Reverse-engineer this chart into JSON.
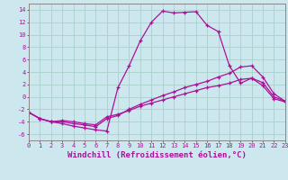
{
  "xlabel": "Windchill (Refroidissement éolien,°C)",
  "xlim": [
    0,
    23
  ],
  "ylim": [
    -7,
    15
  ],
  "yticks": [
    -6,
    -4,
    -2,
    0,
    2,
    4,
    6,
    8,
    10,
    12,
    14
  ],
  "xticks": [
    0,
    1,
    2,
    3,
    4,
    5,
    6,
    7,
    8,
    9,
    10,
    11,
    12,
    13,
    14,
    15,
    16,
    17,
    18,
    19,
    20,
    21,
    22,
    23
  ],
  "background_color": "#cce8ee",
  "grid_color": "#aacfcc",
  "line_color": "#aa1199",
  "line1_x": [
    0,
    1,
    2,
    3,
    4,
    5,
    6,
    7,
    8,
    9,
    10,
    11,
    12,
    13,
    14,
    15,
    16,
    17,
    18,
    19,
    20,
    21,
    22,
    23
  ],
  "line1_y": [
    -2.5,
    -3.5,
    -4.0,
    -4.3,
    -4.7,
    -5.0,
    -5.3,
    -5.5,
    1.5,
    5.0,
    9.0,
    12.0,
    13.8,
    13.5,
    13.6,
    13.7,
    11.5,
    10.5,
    5.0,
    2.2,
    3.0,
    1.8,
    -0.3,
    -0.8
  ],
  "line2_x": [
    0,
    1,
    2,
    3,
    4,
    5,
    6,
    7,
    8,
    9,
    10,
    11,
    12,
    13,
    14,
    15,
    16,
    17,
    18,
    19,
    20,
    21,
    22,
    23
  ],
  "line2_y": [
    -2.5,
    -3.5,
    -4.0,
    -4.0,
    -4.3,
    -4.5,
    -4.8,
    -3.5,
    -3.0,
    -2.0,
    -1.2,
    -0.5,
    0.2,
    0.8,
    1.5,
    2.0,
    2.5,
    3.2,
    3.8,
    4.8,
    5.0,
    3.2,
    0.5,
    -0.7
  ],
  "line3_x": [
    0,
    1,
    2,
    3,
    4,
    5,
    6,
    7,
    8,
    9,
    10,
    11,
    12,
    13,
    14,
    15,
    16,
    17,
    18,
    19,
    20,
    21,
    22,
    23
  ],
  "line3_y": [
    -2.5,
    -3.5,
    -4.0,
    -3.8,
    -4.0,
    -4.3,
    -4.5,
    -3.2,
    -2.8,
    -2.2,
    -1.5,
    -1.0,
    -0.5,
    0.0,
    0.5,
    1.0,
    1.5,
    1.8,
    2.2,
    2.8,
    3.0,
    2.3,
    0.0,
    -0.7
  ],
  "font_size": 6.5,
  "marker": "+",
  "markersize": 3,
  "linewidth": 0.9
}
